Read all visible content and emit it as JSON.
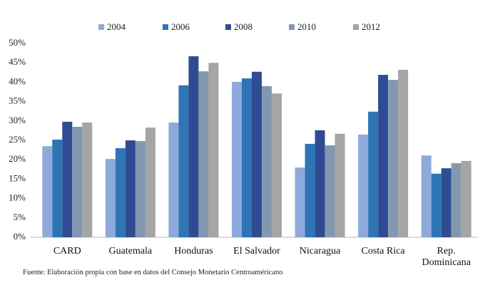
{
  "chart_data": {
    "type": "bar",
    "categories": [
      "CARD",
      "Guatemala",
      "Honduras",
      "El Salvador",
      "Nicaragua",
      "Costa Rica",
      "Rep. Dominicana"
    ],
    "series": [
      {
        "name": "2004",
        "color": "#8eaadb",
        "values": [
          23.5,
          20.2,
          29.6,
          40.1,
          18.0,
          26.5,
          21.1
        ]
      },
      {
        "name": "2006",
        "color": "#2e75b6",
        "values": [
          25.2,
          23.0,
          39.2,
          41.0,
          24.1,
          32.4,
          16.4
        ]
      },
      {
        "name": "2008",
        "color": "#2f4c92",
        "values": [
          29.8,
          25.0,
          46.7,
          42.7,
          27.6,
          41.9,
          17.8
        ]
      },
      {
        "name": "2010",
        "color": "#8497b0",
        "values": [
          28.5,
          24.8,
          42.8,
          39.0,
          23.7,
          40.6,
          19.1
        ]
      },
      {
        "name": "2012",
        "color": "#a5a5a5",
        "values": [
          29.6,
          28.3,
          45.0,
          37.1,
          26.7,
          43.2,
          19.7
        ]
      }
    ],
    "ylim": [
      0,
      50
    ],
    "yticks": [
      {
        "value": 0,
        "label": "0%"
      },
      {
        "value": 5,
        "label": "5%"
      },
      {
        "value": 10,
        "label": "10%"
      },
      {
        "value": 15,
        "label": "15%"
      },
      {
        "value": 20,
        "label": "20%"
      },
      {
        "value": 25,
        "label": "25%"
      },
      {
        "value": 30,
        "label": "30%"
      },
      {
        "value": 35,
        "label": "35%"
      },
      {
        "value": 40,
        "label": "40%"
      },
      {
        "value": 45,
        "label": "45%"
      },
      {
        "value": 50,
        "label": "50%"
      }
    ],
    "grid": false,
    "legend": "top",
    "source": "Fuente: Elaboración propia con base en datos del Consejo Monetario Centroaméricano"
  }
}
